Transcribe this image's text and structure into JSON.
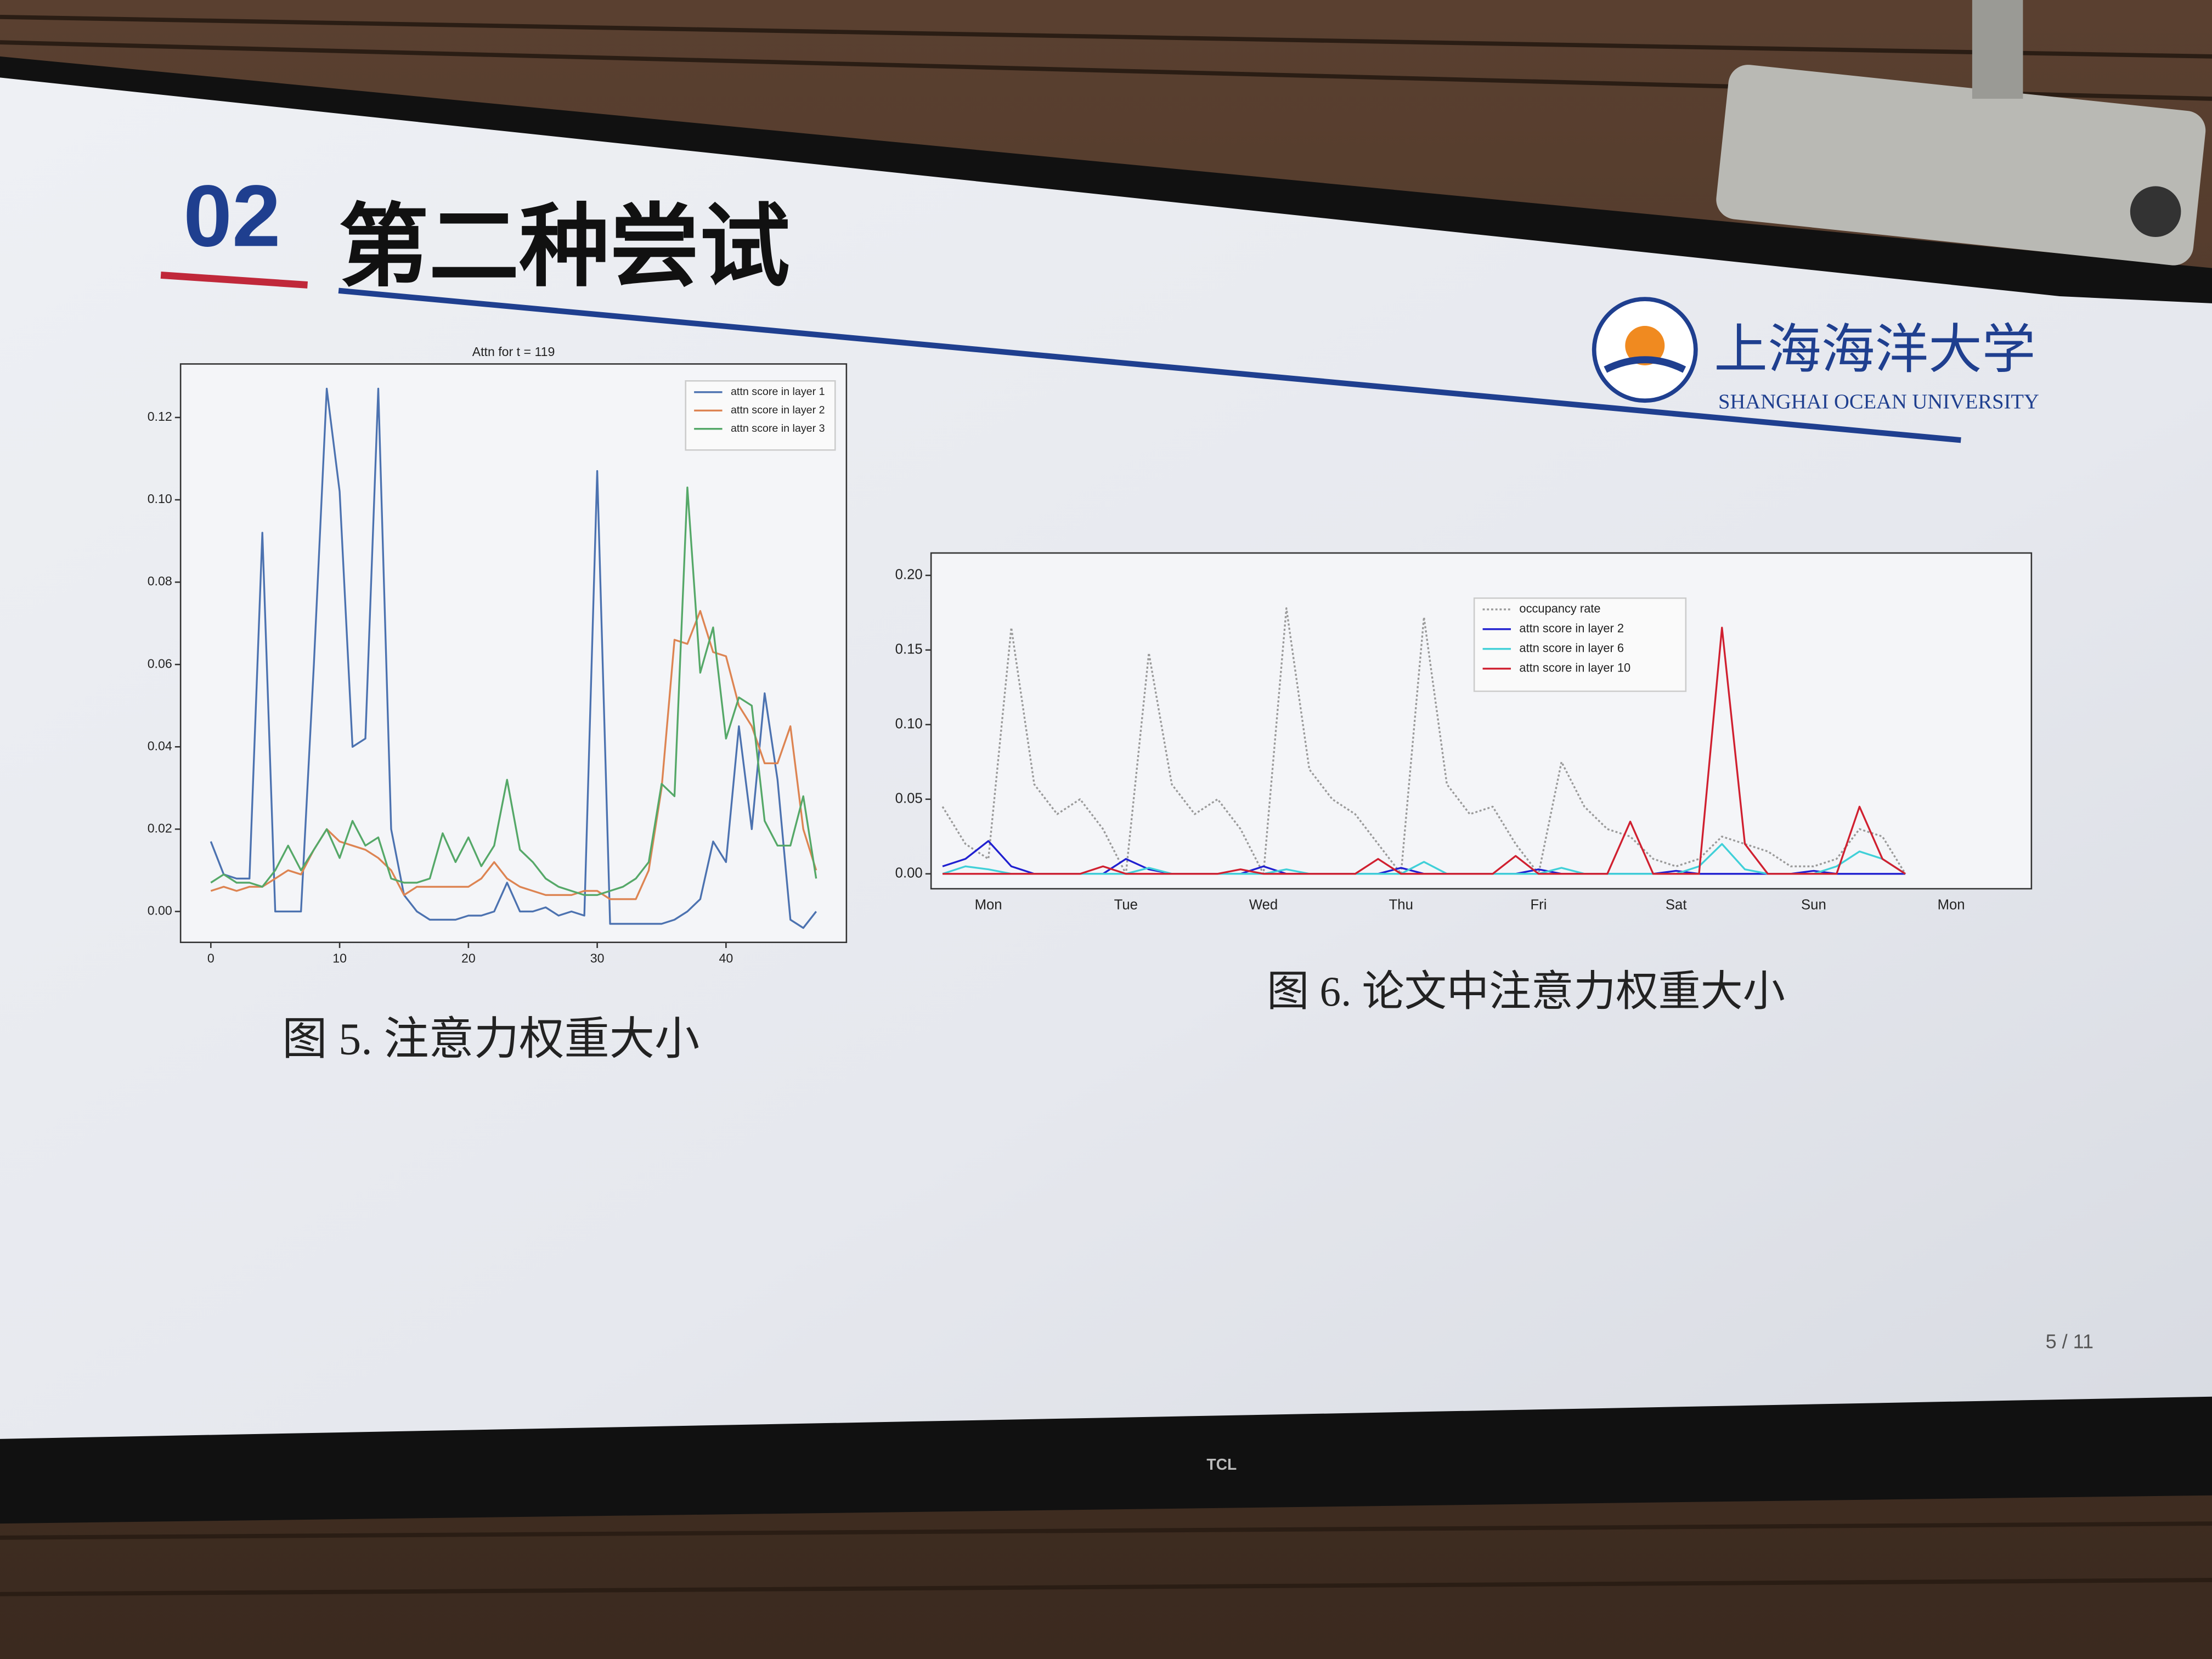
{
  "slide": {
    "section_number": "02",
    "title": "第二种尝试",
    "logo_cn": "上海海洋大学",
    "logo_en": "SHANGHAI OCEAN UNIVERSITY",
    "caption_left": "图 5. 注意力权重大小",
    "caption_right": "图 6. 论文中注意力权重大小",
    "page_number": "5 / 11"
  },
  "tv_brand": "TCL",
  "chart_data": [
    {
      "type": "line",
      "title": "Attn for t = 119",
      "x": [
        0,
        1,
        2,
        3,
        4,
        5,
        6,
        7,
        8,
        9,
        10,
        11,
        12,
        13,
        14,
        15,
        16,
        17,
        18,
        19,
        20,
        21,
        22,
        23,
        24,
        25,
        26,
        27,
        28,
        29,
        30,
        31,
        32,
        33,
        34,
        35,
        36,
        37,
        38,
        39,
        40,
        41,
        42,
        43,
        44,
        45,
        46,
        47
      ],
      "xlim": [
        -2.35,
        49.35
      ],
      "xticks": [
        0,
        10,
        20,
        30,
        40
      ],
      "ylim": [
        -0.0075,
        0.133
      ],
      "yticks": [
        {
          "value": 0,
          "label": "0.00"
        },
        {
          "value": 0.02,
          "label": "0.02"
        },
        {
          "value": 0.04,
          "label": "0.04"
        },
        {
          "value": 0.06,
          "label": "0.06"
        },
        {
          "value": 0.08,
          "label": "0.08"
        },
        {
          "value": 0.1,
          "label": "0.10"
        },
        {
          "value": 0.12,
          "label": "0.12"
        }
      ],
      "legend": "upper right",
      "series": [
        {
          "name": "attn score in layer 1",
          "color": "#4c72b0",
          "values": [
            0.017,
            0.009,
            0.008,
            0.008,
            0.092,
            0.0,
            0.0,
            0.0,
            0.06,
            0.127,
            0.102,
            0.04,
            0.042,
            0.127,
            0.02,
            0.004,
            0.0,
            -0.002,
            -0.002,
            -0.002,
            -0.001,
            -0.001,
            0.0,
            0.007,
            0.0,
            0.0,
            0.001,
            -0.001,
            0.0,
            -0.001,
            0.107,
            -0.003,
            -0.003,
            -0.003,
            -0.003,
            -0.003,
            -0.002,
            0.0,
            0.003,
            0.017,
            0.012,
            0.045,
            0.02,
            0.053,
            0.032,
            -0.002,
            -0.004,
            0.0
          ]
        },
        {
          "name": "attn score in layer 2",
          "color": "#dd8452",
          "values": [
            0.005,
            0.006,
            0.005,
            0.006,
            0.006,
            0.008,
            0.01,
            0.009,
            0.015,
            0.02,
            0.017,
            0.016,
            0.015,
            0.013,
            0.01,
            0.004,
            0.006,
            0.006,
            0.006,
            0.006,
            0.006,
            0.008,
            0.012,
            0.008,
            0.006,
            0.005,
            0.004,
            0.004,
            0.004,
            0.005,
            0.005,
            0.003,
            0.003,
            0.003,
            0.01,
            0.03,
            0.066,
            0.065,
            0.073,
            0.063,
            0.062,
            0.05,
            0.045,
            0.036,
            0.036,
            0.045,
            0.02,
            0.01
          ]
        },
        {
          "name": "attn score in layer 3",
          "color": "#55a868",
          "values": [
            0.007,
            0.009,
            0.007,
            0.007,
            0.006,
            0.01,
            0.016,
            0.01,
            0.015,
            0.02,
            0.013,
            0.022,
            0.016,
            0.018,
            0.008,
            0.007,
            0.007,
            0.008,
            0.019,
            0.012,
            0.018,
            0.011,
            0.016,
            0.032,
            0.015,
            0.012,
            0.008,
            0.006,
            0.005,
            0.004,
            0.004,
            0.005,
            0.006,
            0.008,
            0.012,
            0.031,
            0.028,
            0.103,
            0.058,
            0.069,
            0.042,
            0.052,
            0.05,
            0.022,
            0.016,
            0.016,
            0.028,
            0.008
          ]
        }
      ]
    },
    {
      "type": "line",
      "categories": [
        null,
        null,
        "Mon",
        null,
        null,
        null,
        null,
        null,
        "Tue",
        null,
        null,
        null,
        null,
        null,
        "Wed",
        null,
        null,
        null,
        null,
        null,
        "Thu",
        null,
        null,
        null,
        null,
        null,
        "Fri",
        null,
        null,
        null,
        null,
        null,
        "Sat",
        null,
        null,
        null,
        null,
        null,
        "Sun",
        null,
        null,
        null,
        null,
        null,
        "Mon",
        null,
        null,
        null
      ],
      "ylim": [
        -0.01,
        0.215
      ],
      "yticks": [
        {
          "value": 0,
          "label": "0.00"
        },
        {
          "value": 0.05,
          "label": "0.05"
        },
        {
          "value": 0.1,
          "label": "0.10"
        },
        {
          "value": 0.15,
          "label": "0.15"
        },
        {
          "value": 0.2,
          "label": "0.20"
        }
      ],
      "legend": "upper center",
      "series": [
        {
          "name": "occupancy rate",
          "color": "#9a9a9a",
          "style": "dotted",
          "values": [
            0.045,
            0.02,
            0.01,
            0.165,
            0.06,
            0.04,
            0.05,
            0.03,
            0.0,
            0.148,
            0.06,
            0.04,
            0.05,
            0.03,
            0.0,
            0.178,
            0.07,
            0.05,
            0.04,
            0.02,
            0.0,
            0.172,
            0.06,
            0.04,
            0.045,
            0.02,
            0.0,
            0.075,
            0.045,
            0.03,
            0.025,
            0.01,
            0.005,
            0.01,
            0.025,
            0.02,
            0.015,
            0.005,
            0.005,
            0.01,
            0.03,
            0.025,
            0.0,
            null,
            null,
            null,
            null,
            null
          ]
        },
        {
          "name": "attn score in layer 2",
          "color": "#2020d0",
          "values": [
            0.005,
            0.01,
            0.022,
            0.005,
            0,
            0,
            0,
            0,
            0.01,
            0.003,
            0,
            0,
            0,
            0,
            0.005,
            0,
            0,
            0,
            0,
            0,
            0.004,
            0,
            0,
            0,
            0,
            0,
            0.003,
            0,
            0,
            0,
            0,
            0,
            0.002,
            0,
            0,
            0,
            0,
            0,
            0.002,
            0,
            0,
            0,
            0,
            null,
            null,
            null,
            null,
            null
          ]
        },
        {
          "name": "attn score in layer 6",
          "color": "#40d0d8",
          "values": [
            0,
            0.005,
            0.003,
            0,
            0,
            0,
            0,
            0,
            0,
            0.004,
            0,
            0,
            0,
            0,
            0,
            0.003,
            0,
            0,
            0,
            0,
            0,
            0.008,
            0,
            0,
            0,
            0,
            0,
            0.004,
            0,
            0,
            0,
            0,
            0,
            0.005,
            0.02,
            0.003,
            0,
            0,
            0,
            0.005,
            0.015,
            0.01,
            0,
            null,
            null,
            null,
            null,
            null
          ]
        },
        {
          "name": "attn score in layer 10",
          "color": "#d02030",
          "values": [
            0,
            0,
            0,
            0,
            0,
            0,
            0,
            0.005,
            0,
            0,
            0,
            0,
            0,
            0.003,
            0,
            0,
            0,
            0,
            0,
            0.01,
            0,
            0,
            0,
            0,
            0,
            0.012,
            0,
            0,
            0,
            0,
            0.035,
            0,
            0,
            0,
            0.165,
            0.02,
            0,
            0,
            0,
            0,
            0.045,
            0.01,
            0,
            null,
            null,
            null,
            null,
            null
          ]
        }
      ]
    }
  ]
}
